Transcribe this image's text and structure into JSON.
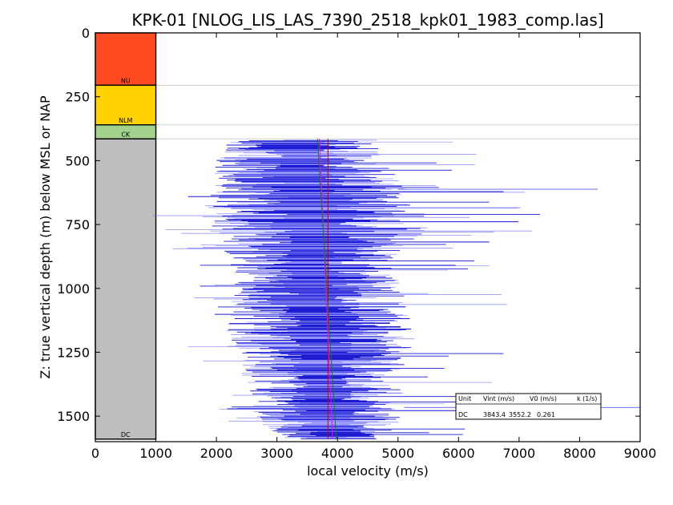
{
  "chart_data": {
    "type": "line",
    "title": "KPK-01 [NLOG_LIS_LAS_7390_2518_kpk01_1983_comp.las]",
    "xlabel": "local velocity (m/s)",
    "ylabel": "Z: true vertical depth (m) below MSL or NAP",
    "xlim": [
      0,
      9000
    ],
    "ylim": [
      1600,
      0
    ],
    "xticks": [
      "0",
      "1000",
      "2000",
      "3000",
      "4000",
      "5000",
      "6000",
      "7000",
      "8000",
      "9000"
    ],
    "yticks": [
      "0",
      "250",
      "500",
      "750",
      "1000",
      "1250",
      "1500"
    ],
    "grid": false,
    "strata": [
      {
        "label": "NU",
        "top": 0,
        "base": 205,
        "color": "#ff4a22"
      },
      {
        "label": "NLM",
        "top": 205,
        "base": 360,
        "color": "#ffd200"
      },
      {
        "label": "CK",
        "top": 360,
        "base": 415,
        "color": "#a3d28f"
      },
      {
        "label": "DC",
        "top": 415,
        "base": 1590,
        "color": "#bebebe"
      }
    ],
    "horizon_lines": [
      205,
      360,
      415
    ],
    "velocity_log": {
      "color": "#0000ff",
      "depth_range": [
        415,
        1590
      ],
      "velocity_range": [
        1400,
        8300
      ],
      "profile": [
        {
          "depth": 450,
          "low": 2100,
          "high": 4800
        },
        {
          "depth": 600,
          "low": 2000,
          "high": 5200
        },
        {
          "depth": 750,
          "low": 1800,
          "high": 5700
        },
        {
          "depth": 900,
          "low": 2200,
          "high": 5000
        },
        {
          "depth": 1050,
          "low": 2300,
          "high": 5200
        },
        {
          "depth": 1200,
          "low": 2200,
          "high": 5400
        },
        {
          "depth": 1350,
          "low": 2500,
          "high": 5200
        },
        {
          "depth": 1500,
          "low": 2700,
          "high": 5100
        },
        {
          "depth": 1590,
          "low": 3000,
          "high": 5000
        }
      ]
    },
    "series": [
      {
        "type": "vertical",
        "color": "#cc0000",
        "x": [
          3843.4,
          3843.4
        ],
        "depth": [
          415,
          1590
        ]
      },
      {
        "type": "trend",
        "color": "#ff00ff",
        "x": [
          3700,
          3920
        ],
        "depth": [
          415,
          1590
        ]
      },
      {
        "type": "trend",
        "color": "#008800",
        "x": [
          3670,
          3980
        ],
        "depth": [
          415,
          1590
        ]
      }
    ],
    "table": {
      "headers": [
        "Unit",
        "Vint (m/s)",
        "V0 (m/s)",
        "k (1/s)"
      ],
      "rows": [
        [
          "DC",
          "3843.4",
          "3552.2",
          "0.261"
        ]
      ]
    }
  }
}
